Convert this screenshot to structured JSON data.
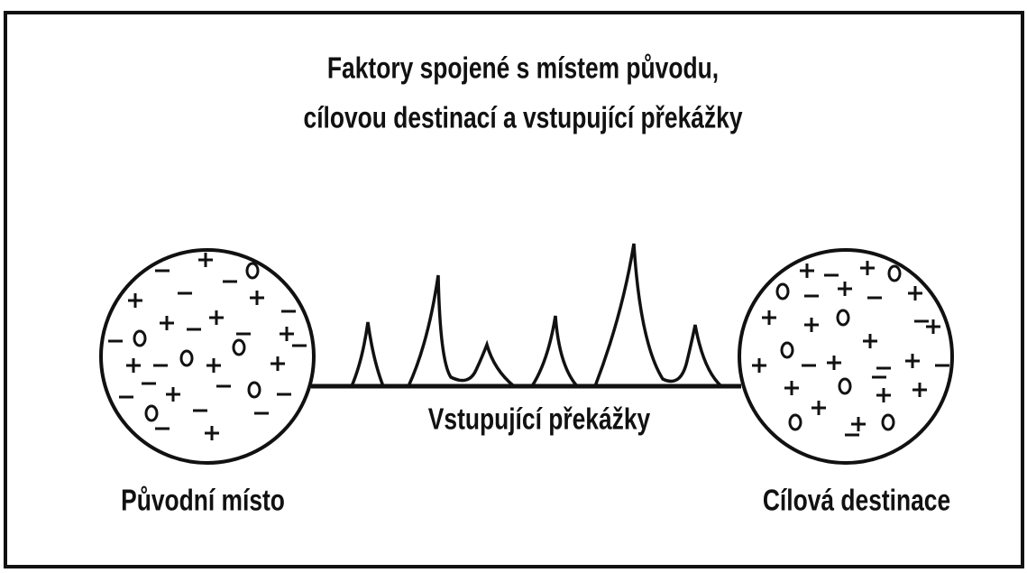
{
  "title": {
    "line1": "Faktory spojené s místem původu,",
    "line2": "cílovou destinací a vstupující překážky"
  },
  "labels": {
    "obstacles": "Vstupující překážky",
    "origin": "Původní místo",
    "destination": "Cílová destinace"
  }
}
